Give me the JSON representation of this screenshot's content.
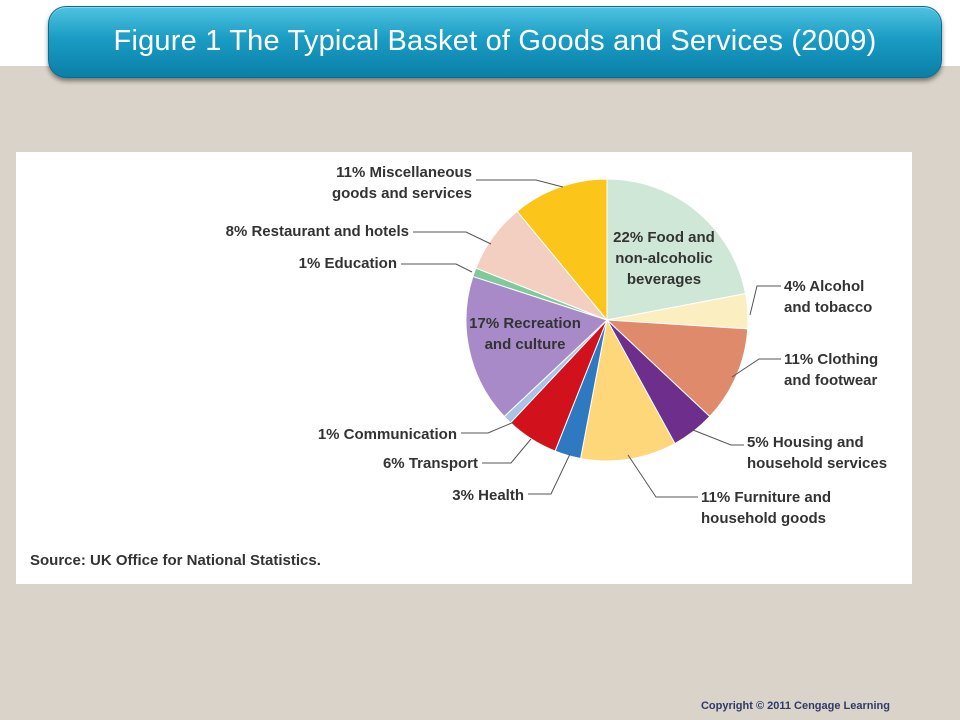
{
  "slide": {
    "title": "Figure 1 The Typical Basket of Goods and Services (2009)",
    "copyright": "Copyright © 2011 Cengage Learning",
    "title_bar_color": "#1a9cc4"
  },
  "chart_data": {
    "type": "pie",
    "source": "Source: UK Office for National Statistics.",
    "slices": [
      {
        "category": "Food and non-alcoholic beverages",
        "value": 22,
        "color": "#cfe7d6",
        "label_lines": [
          "22% Food and",
          "non-alcoholic",
          "beverages"
        ]
      },
      {
        "category": "Alcohol and tobacco",
        "value": 4,
        "color": "#fbeec0",
        "label_lines": [
          "4% Alcohol",
          "and tobacco"
        ]
      },
      {
        "category": "Clothing and footwear",
        "value": 11,
        "color": "#e08a6c",
        "label_lines": [
          "11% Clothing",
          "and footwear"
        ]
      },
      {
        "category": "Housing and household services",
        "value": 5,
        "color": "#6e2e8c",
        "label_lines": [
          "5% Housing and",
          "household services"
        ]
      },
      {
        "category": "Furniture and household goods",
        "value": 11,
        "color": "#fdd77a",
        "label_lines": [
          "11% Furniture and",
          "household goods"
        ]
      },
      {
        "category": "Health",
        "value": 3,
        "color": "#2f79c0",
        "label_lines": [
          "3% Health"
        ]
      },
      {
        "category": "Transport",
        "value": 6,
        "color": "#d1121c",
        "label_lines": [
          "6% Transport"
        ]
      },
      {
        "category": "Communication",
        "value": 1,
        "color": "#a9c4e6",
        "label_lines": [
          "1% Communication"
        ]
      },
      {
        "category": "Recreation and culture",
        "value": 17,
        "color": "#a98ac8",
        "label_lines": [
          "17% Recreation",
          "and culture"
        ]
      },
      {
        "category": "Education",
        "value": 1,
        "color": "#7fc99a",
        "label_lines": [
          "1% Education"
        ]
      },
      {
        "category": "Restaurant and hotels",
        "value": 8,
        "color": "#f3cfc2",
        "label_lines": [
          "8% Restaurant and hotels"
        ]
      },
      {
        "category": "Miscellaneous goods and services",
        "value": 11,
        "color": "#fbc51a",
        "label_lines": [
          "11% Miscellaneous",
          "goods and services"
        ]
      }
    ]
  }
}
